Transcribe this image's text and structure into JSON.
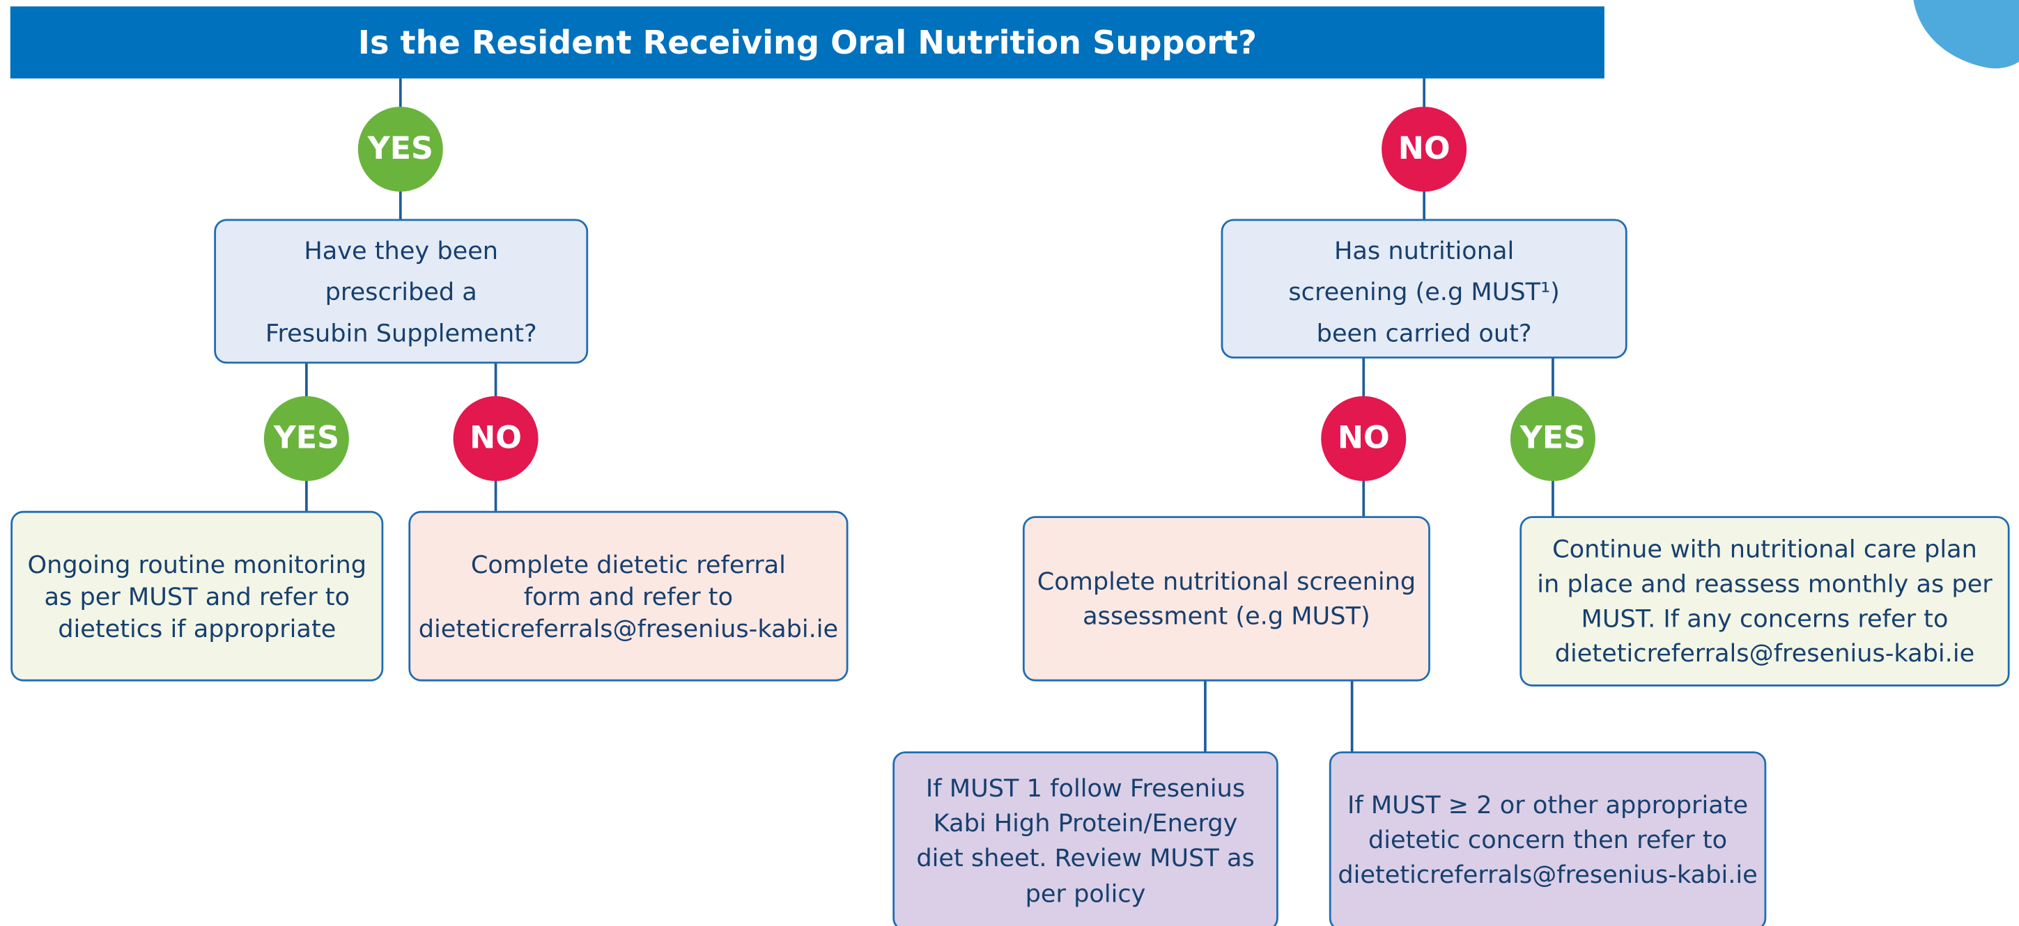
{
  "header": {
    "title": "Is the Resident Receiving Oral Nutrition Support?"
  },
  "nodes": [
    {
      "label": "YES"
    },
    {
      "label": "NO"
    },
    {
      "lines": [
        "Have they been",
        "prescribed a",
        "Fresubin Supplement?"
      ]
    },
    {
      "lines": [
        "Has nutritional",
        "screening (e.g MUST¹)",
        "been carried out?"
      ]
    },
    {
      "label": "YES"
    },
    {
      "label": "NO"
    },
    {
      "label": "NO"
    },
    {
      "label": "YES"
    },
    {
      "lines": [
        "Ongoing routine monitoring",
        "as per MUST and refer to",
        "dietetics if appropriate"
      ]
    },
    {
      "lines": [
        "Complete dietetic referral",
        "form and refer to",
        "dieteticreferrals@fresenius-kabi.ie"
      ]
    },
    {
      "lines": [
        "Complete nutritional screening",
        "assessment (e.g MUST)"
      ]
    },
    {
      "lines": [
        "Continue with nutritional care plan",
        "in place and reassess monthly as per",
        "MUST. If any concerns refer to",
        "dieteticreferrals@fresenius-kabi.ie"
      ]
    },
    {
      "lines": [
        "If MUST 1 follow Fresenius",
        "Kabi High Protein/Energy",
        "diet sheet. Review MUST as",
        "per policy"
      ]
    },
    {
      "lines": [
        "If MUST ≥ 2 or other appropriate",
        "dietetic concern then refer to",
        "dieteticreferrals@fresenius-kabi.ie"
      ]
    }
  ]
}
